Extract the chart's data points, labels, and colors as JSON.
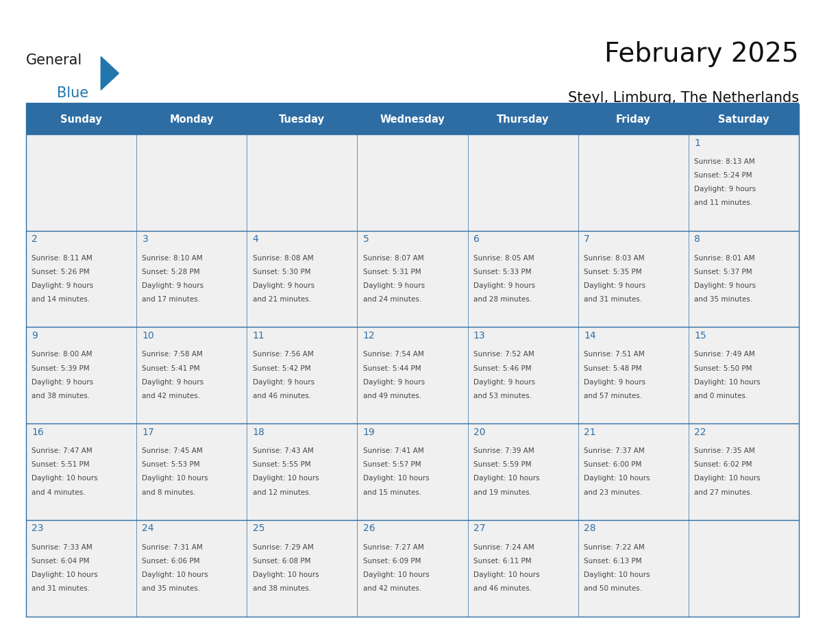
{
  "title": "February 2025",
  "subtitle": "Steyl, Limburg, The Netherlands",
  "header_bg": "#2E6DA4",
  "header_text_color": "#FFFFFF",
  "cell_bg": "#F0F0F0",
  "day_number_color": "#2E6DA4",
  "text_color": "#444444",
  "border_color": "#2E6DA4",
  "days_of_week": [
    "Sunday",
    "Monday",
    "Tuesday",
    "Wednesday",
    "Thursday",
    "Friday",
    "Saturday"
  ],
  "weeks": [
    [
      {
        "day": null,
        "info": null
      },
      {
        "day": null,
        "info": null
      },
      {
        "day": null,
        "info": null
      },
      {
        "day": null,
        "info": null
      },
      {
        "day": null,
        "info": null
      },
      {
        "day": null,
        "info": null
      },
      {
        "day": "1",
        "info": "Sunrise: 8:13 AM\nSunset: 5:24 PM\nDaylight: 9 hours\nand 11 minutes."
      }
    ],
    [
      {
        "day": "2",
        "info": "Sunrise: 8:11 AM\nSunset: 5:26 PM\nDaylight: 9 hours\nand 14 minutes."
      },
      {
        "day": "3",
        "info": "Sunrise: 8:10 AM\nSunset: 5:28 PM\nDaylight: 9 hours\nand 17 minutes."
      },
      {
        "day": "4",
        "info": "Sunrise: 8:08 AM\nSunset: 5:30 PM\nDaylight: 9 hours\nand 21 minutes."
      },
      {
        "day": "5",
        "info": "Sunrise: 8:07 AM\nSunset: 5:31 PM\nDaylight: 9 hours\nand 24 minutes."
      },
      {
        "day": "6",
        "info": "Sunrise: 8:05 AM\nSunset: 5:33 PM\nDaylight: 9 hours\nand 28 minutes."
      },
      {
        "day": "7",
        "info": "Sunrise: 8:03 AM\nSunset: 5:35 PM\nDaylight: 9 hours\nand 31 minutes."
      },
      {
        "day": "8",
        "info": "Sunrise: 8:01 AM\nSunset: 5:37 PM\nDaylight: 9 hours\nand 35 minutes."
      }
    ],
    [
      {
        "day": "9",
        "info": "Sunrise: 8:00 AM\nSunset: 5:39 PM\nDaylight: 9 hours\nand 38 minutes."
      },
      {
        "day": "10",
        "info": "Sunrise: 7:58 AM\nSunset: 5:41 PM\nDaylight: 9 hours\nand 42 minutes."
      },
      {
        "day": "11",
        "info": "Sunrise: 7:56 AM\nSunset: 5:42 PM\nDaylight: 9 hours\nand 46 minutes."
      },
      {
        "day": "12",
        "info": "Sunrise: 7:54 AM\nSunset: 5:44 PM\nDaylight: 9 hours\nand 49 minutes."
      },
      {
        "day": "13",
        "info": "Sunrise: 7:52 AM\nSunset: 5:46 PM\nDaylight: 9 hours\nand 53 minutes."
      },
      {
        "day": "14",
        "info": "Sunrise: 7:51 AM\nSunset: 5:48 PM\nDaylight: 9 hours\nand 57 minutes."
      },
      {
        "day": "15",
        "info": "Sunrise: 7:49 AM\nSunset: 5:50 PM\nDaylight: 10 hours\nand 0 minutes."
      }
    ],
    [
      {
        "day": "16",
        "info": "Sunrise: 7:47 AM\nSunset: 5:51 PM\nDaylight: 10 hours\nand 4 minutes."
      },
      {
        "day": "17",
        "info": "Sunrise: 7:45 AM\nSunset: 5:53 PM\nDaylight: 10 hours\nand 8 minutes."
      },
      {
        "day": "18",
        "info": "Sunrise: 7:43 AM\nSunset: 5:55 PM\nDaylight: 10 hours\nand 12 minutes."
      },
      {
        "day": "19",
        "info": "Sunrise: 7:41 AM\nSunset: 5:57 PM\nDaylight: 10 hours\nand 15 minutes."
      },
      {
        "day": "20",
        "info": "Sunrise: 7:39 AM\nSunset: 5:59 PM\nDaylight: 10 hours\nand 19 minutes."
      },
      {
        "day": "21",
        "info": "Sunrise: 7:37 AM\nSunset: 6:00 PM\nDaylight: 10 hours\nand 23 minutes."
      },
      {
        "day": "22",
        "info": "Sunrise: 7:35 AM\nSunset: 6:02 PM\nDaylight: 10 hours\nand 27 minutes."
      }
    ],
    [
      {
        "day": "23",
        "info": "Sunrise: 7:33 AM\nSunset: 6:04 PM\nDaylight: 10 hours\nand 31 minutes."
      },
      {
        "day": "24",
        "info": "Sunrise: 7:31 AM\nSunset: 6:06 PM\nDaylight: 10 hours\nand 35 minutes."
      },
      {
        "day": "25",
        "info": "Sunrise: 7:29 AM\nSunset: 6:08 PM\nDaylight: 10 hours\nand 38 minutes."
      },
      {
        "day": "26",
        "info": "Sunrise: 7:27 AM\nSunset: 6:09 PM\nDaylight: 10 hours\nand 42 minutes."
      },
      {
        "day": "27",
        "info": "Sunrise: 7:24 AM\nSunset: 6:11 PM\nDaylight: 10 hours\nand 46 minutes."
      },
      {
        "day": "28",
        "info": "Sunrise: 7:22 AM\nSunset: 6:13 PM\nDaylight: 10 hours\nand 50 minutes."
      },
      {
        "day": null,
        "info": null
      }
    ]
  ],
  "logo_color_general": "#1a1a1a",
  "logo_color_blue": "#2176AE",
  "logo_triangle_color": "#2176AE"
}
